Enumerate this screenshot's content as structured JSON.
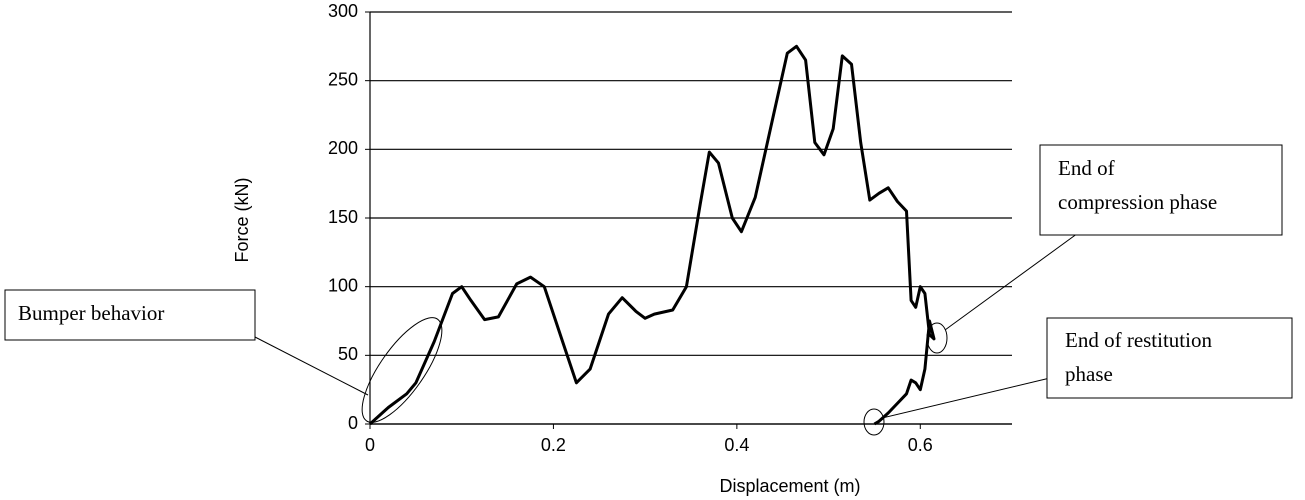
{
  "chart_data": {
    "type": "line",
    "x_label": "Displacement (m)",
    "y_label": "Force (kN)",
    "x": [
      0,
      0.02,
      0.04,
      0.05,
      0.07,
      0.09,
      0.1,
      0.11,
      0.125,
      0.14,
      0.16,
      0.175,
      0.19,
      0.21,
      0.225,
      0.24,
      0.26,
      0.275,
      0.29,
      0.3,
      0.31,
      0.33,
      0.345,
      0.36,
      0.37,
      0.38,
      0.395,
      0.405,
      0.42,
      0.44,
      0.455,
      0.465,
      0.475,
      0.485,
      0.495,
      0.505,
      0.515,
      0.525,
      0.535,
      0.545,
      0.555,
      0.565,
      0.575,
      0.585,
      0.59,
      0.595,
      0.6,
      0.605,
      0.61,
      0.615,
      0.61,
      0.605,
      0.6,
      0.595,
      0.59,
      0.585,
      0.575,
      0.565,
      0.555,
      0.55
    ],
    "values": [
      0,
      12,
      22,
      30,
      60,
      95,
      100,
      90,
      76,
      78,
      102,
      107,
      100,
      60,
      30,
      40,
      80,
      92,
      82,
      77,
      80,
      83,
      100,
      160,
      198,
      190,
      150,
      140,
      165,
      225,
      270,
      275,
      265,
      205,
      196,
      215,
      268,
      262,
      205,
      163,
      168,
      172,
      162,
      155,
      90,
      85,
      100,
      95,
      65,
      62,
      75,
      40,
      25,
      30,
      32,
      22,
      15,
      8,
      2,
      0
    ],
    "color": "#000000",
    "xlim": [
      0,
      0.7
    ],
    "xticks": [
      0,
      0.2,
      0.4,
      0.6
    ],
    "ylim": [
      0,
      300
    ],
    "yticks": [
      0,
      50,
      100,
      150,
      200,
      250,
      300
    ],
    "grid": true,
    "annotations": [
      {
        "lines": [
          "Bumper behavior"
        ]
      },
      {
        "lines": [
          "End of",
          "compression phase"
        ]
      },
      {
        "lines": [
          "End of restitution",
          "phase"
        ]
      }
    ]
  }
}
